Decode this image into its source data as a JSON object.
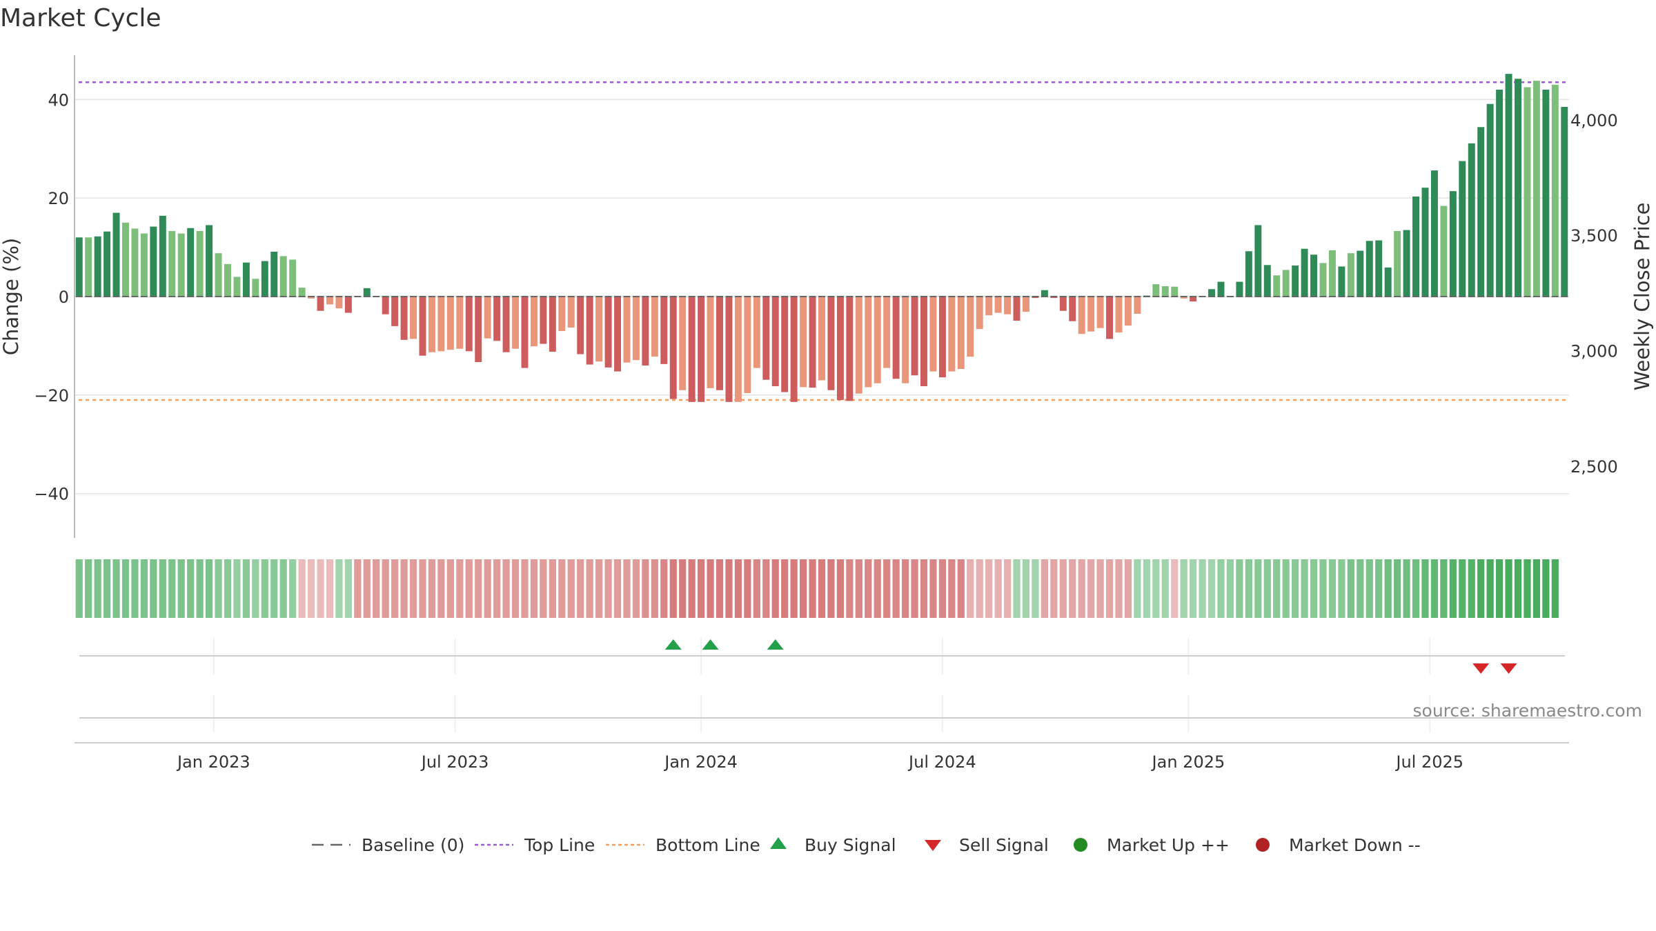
{
  "chart_data": {
    "type": "bar",
    "title": "Market Cycle",
    "ylabel": "Change (%)",
    "y2label": "Weekly Close Price",
    "ylim": [
      -49,
      49
    ],
    "y_ticks": [
      40,
      20,
      0,
      -20,
      -40
    ],
    "y2lim": [
      2190,
      4280
    ],
    "y2_ticks": [
      4000,
      3500,
      3000,
      2500
    ],
    "top_line": 43.5,
    "bottom_line": -21,
    "x_tick_labels": [
      "Jan 2023",
      "Jul 2023",
      "Jan 2024",
      "Jul 2024",
      "Jan 2025",
      "Jul 2025"
    ],
    "x_tick_week_index": [
      14.5,
      40.5,
      67,
      93,
      119.5,
      145.5
    ],
    "weekly_change_pct": [
      12,
      12,
      12.2,
      13.2,
      17,
      15,
      13.8,
      12.8,
      14.2,
      16.4,
      13.3,
      12.8,
      13.9,
      13.3,
      14.5,
      8.8,
      6.6,
      4,
      6.9,
      3.6,
      7.2,
      9.1,
      8.2,
      7.5,
      1.8,
      -0.4,
      -2.9,
      -1.6,
      -2.4,
      -3.3,
      0.1,
      1.7,
      0.1,
      -3.6,
      -6,
      -8.8,
      -8.6,
      -12,
      -11.3,
      -11.1,
      -10.8,
      -10.6,
      -11.1,
      -13.3,
      -8.5,
      -9,
      -11.3,
      -10.6,
      -14.5,
      -10.1,
      -9.6,
      -11.2,
      -7,
      -6.3,
      -11.7,
      -13.8,
      -13.2,
      -14.4,
      -15.2,
      -13.4,
      -12.9,
      -14,
      -12.2,
      -13.7,
      -20.8,
      -19,
      -21.4,
      -21.4,
      -18.6,
      -19,
      -21.4,
      -21.4,
      -19.6,
      -14.5,
      -16.9,
      -18.2,
      -19.4,
      -21.4,
      -18.4,
      -18.5,
      -17,
      -19,
      -21,
      -21.2,
      -19.7,
      -18.4,
      -17.6,
      -14.5,
      -16.7,
      -17.6,
      -16,
      -18.2,
      -15.2,
      -16.4,
      -15.2,
      -14.7,
      -12.2,
      -6.6,
      -3.8,
      -3.3,
      -3.6,
      -4.9,
      -3.1,
      -0.3,
      1.3,
      -0.3,
      -2.9,
      -5,
      -7.6,
      -7.1,
      -6.4,
      -8.6,
      -7.3,
      -5.9,
      -3.5,
      0.2,
      2.5,
      2.1,
      2,
      -0.4,
      -1,
      0,
      1.5,
      3,
      0,
      3,
      9.2,
      14.5,
      6.4,
      4.3,
      5.4,
      6.3,
      9.7,
      8.5,
      6.8,
      9.4,
      6.1,
      8.8,
      9.3,
      11.3,
      11.4,
      5.9,
      13.3,
      13.5,
      20.3,
      22.1,
      25.6,
      18.4,
      21.4,
      27.5,
      31.1,
      34.4,
      39.1,
      42,
      45.2,
      44.2,
      42.5,
      43.8,
      42,
      43,
      38.5
    ],
    "weekly_close_price": [
      3509,
      3504,
      3511,
      3533,
      3612,
      3567,
      3541,
      3519,
      3548,
      3595,
      3529,
      3519,
      3543,
      3529,
      3555,
      3430,
      3382,
      3327,
      3388,
      3318,
      3394,
      3433,
      3415,
      3400,
      3276,
      3230,
      3176,
      3204,
      3187,
      3168,
      3241,
      3276,
      3241,
      3166,
      3115,
      3054,
      3059,
      2986,
      3001,
      3005,
      3011,
      3016,
      3005,
      2958,
      3061,
      3050,
      3001,
      3016,
      2933,
      3027,
      3037,
      3003,
      3092,
      3107,
      2992,
      2948,
      2960,
      2935,
      2918,
      2956,
      2966,
      2943,
      2982,
      2950,
      2800,
      2838,
      2787,
      2787,
      2846,
      2838,
      2787,
      2787,
      2829,
      2937,
      2886,
      2859,
      2833,
      2787,
      2850,
      2848,
      2880,
      2838,
      2795,
      2791,
      2823,
      2850,
      2867,
      2933,
      2886,
      2867,
      2901,
      2855,
      2918,
      2893,
      2918,
      2929,
      2982,
      3100,
      3159,
      3170,
      3163,
      3136,
      3174,
      3232,
      3266,
      3232,
      3176,
      3132,
      3077,
      3088,
      3102,
      3056,
      3083,
      3113,
      3164,
      3243,
      3291,
      3283,
      3281,
      3230,
      3217,
      3239,
      3271,
      3302,
      3239,
      3302,
      3433,
      3544,
      3374,
      3330,
      3353,
      3372,
      3444,
      3418,
      3382,
      3437,
      3368,
      3425,
      3435,
      3477,
      3480,
      3363,
      3519,
      3523,
      3667,
      3705,
      3778,
      3627,
      3689,
      3817,
      3893,
      3962,
      4061,
      4121,
      4189,
      4168,
      4132,
      4160,
      4121,
      4142,
      4048
    ],
    "weekly_shade": [
      "g",
      "l",
      "g",
      "g",
      "g",
      "l",
      "l",
      "l",
      "g",
      "g",
      "l",
      "l",
      "g",
      "l",
      "g",
      "l",
      "l",
      "l",
      "g",
      "l",
      "g",
      "g",
      "l",
      "l",
      "l",
      "l",
      "g",
      "l",
      "l",
      "g",
      "g",
      "g",
      "g",
      "g",
      "g",
      "g",
      "l",
      "g",
      "l",
      "l",
      "l",
      "l",
      "g",
      "g",
      "l",
      "g",
      "g",
      "l",
      "g",
      "l",
      "g",
      "g",
      "l",
      "l",
      "g",
      "g",
      "l",
      "g",
      "g",
      "l",
      "l",
      "g",
      "l",
      "g",
      "g",
      "l",
      "g",
      "g",
      "l",
      "g",
      "g",
      "l",
      "l",
      "l",
      "g",
      "g",
      "g",
      "g",
      "l",
      "g",
      "l",
      "g",
      "g",
      "g",
      "l",
      "l",
      "l",
      "l",
      "g",
      "l",
      "g",
      "g",
      "l",
      "g",
      "l",
      "l",
      "l",
      "l",
      "l",
      "l",
      "l",
      "g",
      "l",
      "g",
      "g",
      "g",
      "g",
      "g",
      "l",
      "l",
      "l",
      "g",
      "l",
      "l",
      "l",
      "g",
      "l",
      "l",
      "l",
      "l",
      "g",
      "g",
      "g",
      "g",
      "g",
      "g",
      "g",
      "g",
      "g",
      "l",
      "l",
      "g",
      "g",
      "g",
      "l",
      "l",
      "g",
      "l",
      "g",
      "g",
      "g",
      "g",
      "l",
      "g",
      "g",
      "g",
      "g",
      "l",
      "g",
      "g",
      "g",
      "g",
      "g",
      "g",
      "g",
      "g",
      "l",
      "l",
      "g",
      "l",
      "g",
      "l"
    ],
    "heat_strip": [
      0.4,
      0.4,
      0.4,
      0.4,
      0.4,
      0.4,
      0.4,
      0.4,
      0.4,
      0.4,
      0.4,
      0.4,
      0.4,
      0.4,
      0.4,
      0.35,
      0.35,
      0.3,
      0.35,
      0.3,
      0.35,
      0.35,
      0.35,
      0.3,
      -0.2,
      -0.2,
      -0.2,
      -0.2,
      0.25,
      0.25,
      -0.35,
      -0.35,
      -0.35,
      -0.35,
      -0.35,
      -0.35,
      -0.35,
      -0.35,
      -0.35,
      -0.35,
      -0.35,
      -0.35,
      -0.35,
      -0.35,
      -0.35,
      -0.35,
      -0.35,
      -0.35,
      -0.35,
      -0.35,
      -0.35,
      -0.35,
      -0.35,
      -0.35,
      -0.35,
      -0.35,
      -0.35,
      -0.35,
      -0.35,
      -0.35,
      -0.35,
      -0.4,
      -0.4,
      -0.45,
      -0.5,
      -0.5,
      -0.5,
      -0.5,
      -0.5,
      -0.5,
      -0.5,
      -0.5,
      -0.5,
      -0.45,
      -0.45,
      -0.5,
      -0.5,
      -0.5,
      -0.5,
      -0.5,
      -0.5,
      -0.5,
      -0.5,
      -0.45,
      -0.45,
      -0.45,
      -0.45,
      -0.45,
      -0.45,
      -0.45,
      -0.45,
      -0.45,
      -0.45,
      -0.45,
      -0.45,
      -0.45,
      -0.25,
      -0.25,
      -0.25,
      -0.25,
      -0.25,
      0.25,
      0.25,
      0.25,
      -0.3,
      -0.3,
      -0.3,
      -0.3,
      -0.3,
      -0.3,
      -0.3,
      -0.3,
      -0.3,
      -0.3,
      0.25,
      0.25,
      0.25,
      0.25,
      -0.2,
      0.25,
      0.25,
      0.25,
      0.25,
      0.3,
      0.3,
      0.35,
      0.35,
      0.35,
      0.35,
      0.35,
      0.35,
      0.35,
      0.35,
      0.35,
      0.35,
      0.35,
      0.35,
      0.4,
      0.4,
      0.4,
      0.4,
      0.45,
      0.45,
      0.45,
      0.45,
      0.5,
      0.5,
      0.5,
      0.55,
      0.55,
      0.55,
      0.6,
      0.6,
      0.6,
      0.6,
      0.6,
      0.6,
      0.6,
      0.6,
      0.6
    ],
    "buy_signal_week_index": [
      64,
      68,
      75
    ],
    "sell_signal_week_index": [
      151,
      154
    ],
    "market_up_week_index": [],
    "market_down_week_index": [],
    "source": "source: sharemaestro.com",
    "legend": [
      {
        "key": "baseline",
        "label": "Baseline (0)"
      },
      {
        "key": "top",
        "label": "Top Line"
      },
      {
        "key": "bottom",
        "label": "Bottom Line"
      },
      {
        "key": "buy",
        "label": "Buy Signal"
      },
      {
        "key": "sell",
        "label": "Sell Signal"
      },
      {
        "key": "up",
        "label": "Market Up ++"
      },
      {
        "key": "down",
        "label": "Market Down --"
      }
    ],
    "legend_position": "bottom-center",
    "grid": true
  },
  "colors": {
    "pos_dark": "#2e8b57",
    "pos_light": "#7dbf7a",
    "neg_dark": "#cd5c5c",
    "neg_light": "#e9967a",
    "top_line": "#9b59d0",
    "bottom_line": "#f0a060",
    "buy": "#22a04a",
    "sell": "#d62728",
    "market_up": "#228b22",
    "market_down": "#b22222",
    "grid": "#e3e3e3",
    "axis": "#bbbbbb",
    "baseline": "#666666"
  }
}
